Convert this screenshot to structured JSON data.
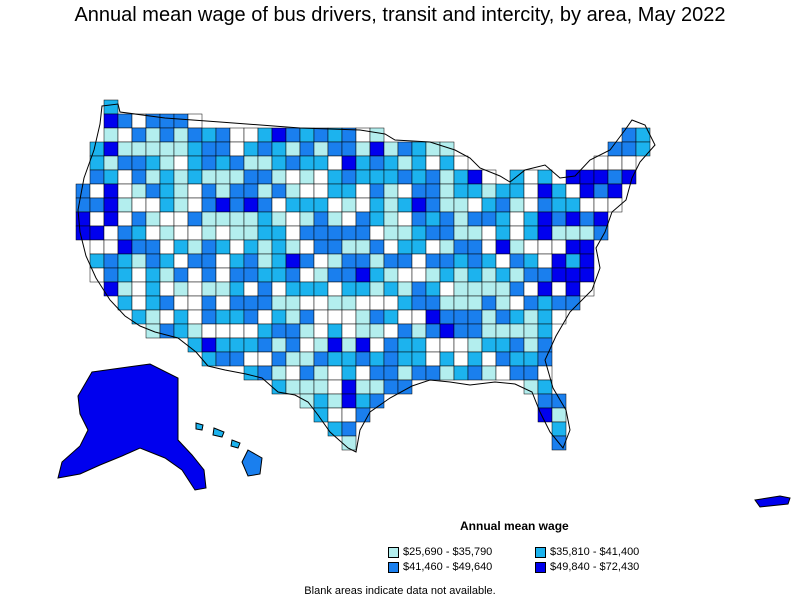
{
  "title": "Annual mean wage of bus drivers, transit and intercity, by area, May 2022",
  "legend": {
    "title": "Annual mean wage",
    "items": [
      {
        "label": "$25,690 - $35,790",
        "color": "#b3eeee"
      },
      {
        "label": "$35,810 - $41,400",
        "color": "#1cb3ee"
      },
      {
        "label": "$41,460 - $49,640",
        "color": "#1a7fee"
      },
      {
        "label": "$49,840 - $72,430",
        "color": "#0000ee"
      }
    ]
  },
  "note": "Blank areas indicate data not available.",
  "colors": {
    "no_data": "#ffffff",
    "outline": "#000000"
  }
}
